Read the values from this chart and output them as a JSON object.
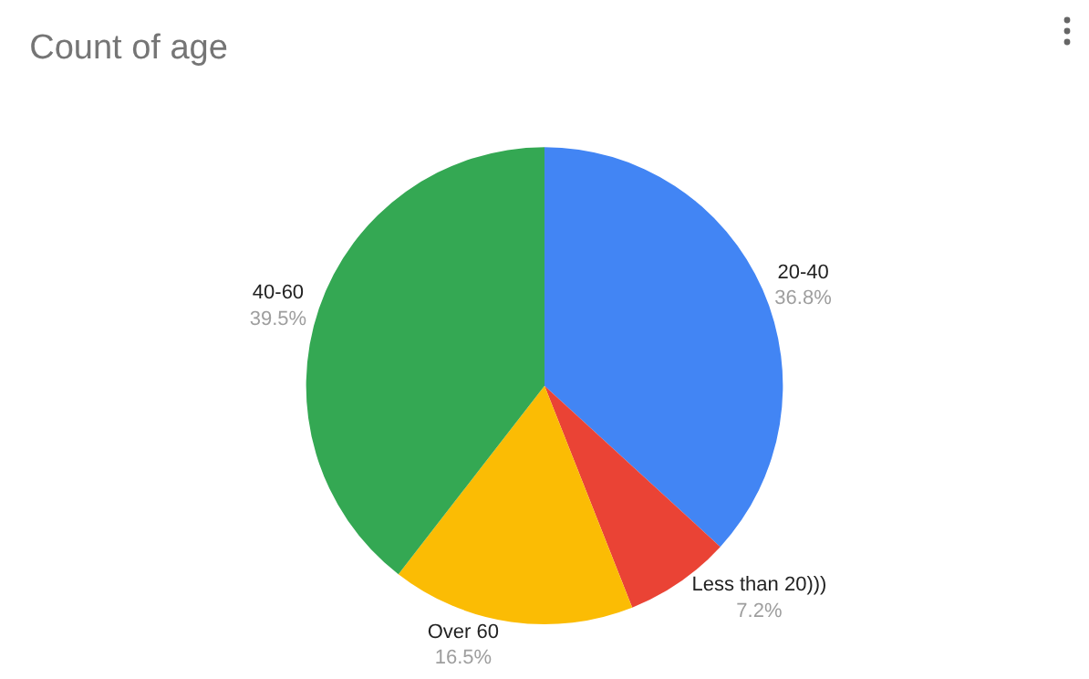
{
  "chart_data": {
    "type": "pie",
    "title": "Count of age",
    "categories": [
      "20-40",
      "Less than 20)))",
      "Over 60",
      "40-60"
    ],
    "values": [
      36.8,
      7.2,
      16.5,
      39.5
    ],
    "value_labels": [
      "36.8%",
      "7.2%",
      "16.5%",
      "39.5%"
    ],
    "colors": [
      "#4285f4",
      "#ea4335",
      "#fbbc04",
      "#34a853"
    ],
    "legend": false
  }
}
